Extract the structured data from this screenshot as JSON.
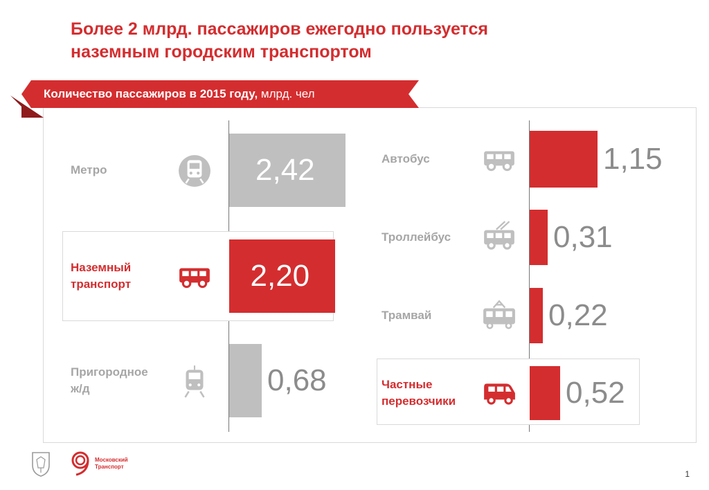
{
  "title_lines": [
    "Более 2 млрд. пассажиров ежегодно пользуется",
    "наземным городским транспортом"
  ],
  "subtitle": {
    "bold": "Количество пассажиров в 2015 году,",
    "rest": " млрд. чел"
  },
  "colors": {
    "accent": "#d42d2f",
    "muted": "#bfbfbf",
    "label_muted": "#a6a6a6",
    "value_muted": "#8c8c8c"
  },
  "chart_data": [
    {
      "type": "bar",
      "orientation": "horizontal",
      "title": "Количество пассажиров в 2015 году, млрд. чел",
      "categories": [
        "Метро",
        "Наземный транспорт",
        "Пригородное ж/д"
      ],
      "category_lines": [
        [
          "Метро"
        ],
        [
          "Наземный",
          "транспорт"
        ],
        [
          "Пригородное",
          "ж/д"
        ]
      ],
      "icons": [
        "metro-train-icon",
        "bus-icon",
        "suburban-train-icon"
      ],
      "values": [
        2.42,
        2.2,
        0.68
      ],
      "labels": [
        "2,42",
        "2,20",
        "0,68"
      ],
      "highlight": [
        false,
        true,
        false
      ],
      "xlim": [
        0,
        2.42
      ]
    },
    {
      "type": "bar",
      "orientation": "horizontal",
      "categories": [
        "Автобус",
        "Троллейбус",
        "Трамвай",
        "Частные перевозчики"
      ],
      "category_lines": [
        [
          "Автобус"
        ],
        [
          "Троллейбус"
        ],
        [
          "Трамвай"
        ],
        [
          "Частные",
          "перевозчики"
        ]
      ],
      "icons": [
        "bus-icon",
        "trolleybus-icon",
        "tram-icon",
        "minibus-icon"
      ],
      "values": [
        1.15,
        0.31,
        0.22,
        0.52
      ],
      "labels": [
        "1,15",
        "0,31",
        "0,22",
        "0,52"
      ],
      "highlight": [
        false,
        false,
        false,
        true
      ],
      "xlim": [
        0,
        1.15
      ]
    }
  ],
  "brand": {
    "line1": "Московский",
    "line2": "Транспорт"
  },
  "page_number": "1"
}
